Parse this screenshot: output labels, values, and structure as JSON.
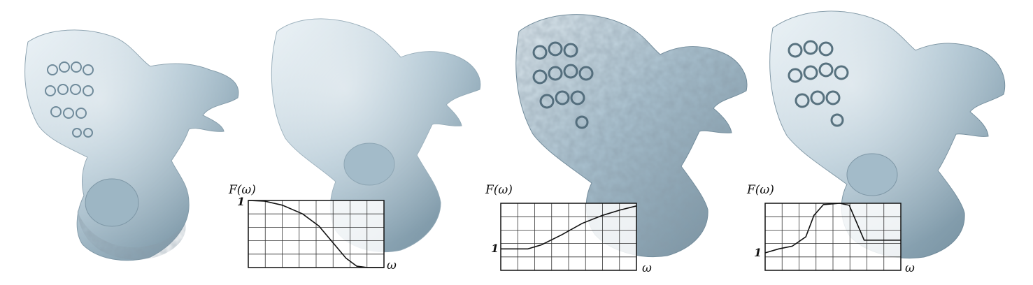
{
  "figure": {
    "panels": [
      {
        "id": "original",
        "variant": "original",
        "has_plot": false
      },
      {
        "id": "smoothed",
        "variant": "smooth",
        "has_plot": true,
        "plot": {
          "ylabel": "F(ω)",
          "xlabel": "ω",
          "one_label": "1",
          "curve": [
            [
              0,
              1.0
            ],
            [
              0.12,
              0.99
            ],
            [
              0.25,
              0.93
            ],
            [
              0.4,
              0.8
            ],
            [
              0.52,
              0.62
            ],
            [
              0.62,
              0.38
            ],
            [
              0.72,
              0.14
            ],
            [
              0.8,
              0.02
            ],
            [
              0.88,
              0.0
            ],
            [
              1.0,
              0.0
            ]
          ]
        }
      },
      {
        "id": "enhanced-high",
        "variant": "rough",
        "has_plot": true,
        "plot": {
          "ylabel": "F(ω)",
          "xlabel": "ω",
          "one_label": "1",
          "curve": [
            [
              0,
              0.32
            ],
            [
              0.2,
              0.32
            ],
            [
              0.3,
              0.38
            ],
            [
              0.45,
              0.53
            ],
            [
              0.6,
              0.7
            ],
            [
              0.75,
              0.82
            ],
            [
              0.88,
              0.9
            ],
            [
              1.0,
              0.96
            ]
          ]
        }
      },
      {
        "id": "enhanced-band",
        "variant": "band",
        "has_plot": true,
        "plot": {
          "ylabel": "F(ω)",
          "xlabel": "ω",
          "one_label": "1",
          "curve": [
            [
              0,
              0.26
            ],
            [
              0.1,
              0.32
            ],
            [
              0.2,
              0.36
            ],
            [
              0.3,
              0.5
            ],
            [
              0.36,
              0.82
            ],
            [
              0.43,
              0.98
            ],
            [
              0.55,
              1.0
            ],
            [
              0.62,
              0.97
            ],
            [
              0.73,
              0.45
            ],
            [
              0.8,
              0.45
            ],
            [
              1.0,
              0.45
            ]
          ]
        }
      }
    ],
    "colors": {
      "model": "#a9c1cf",
      "model_dark": "#6c8797",
      "model_light": "#e4eef3",
      "grid": "#333333"
    }
  }
}
